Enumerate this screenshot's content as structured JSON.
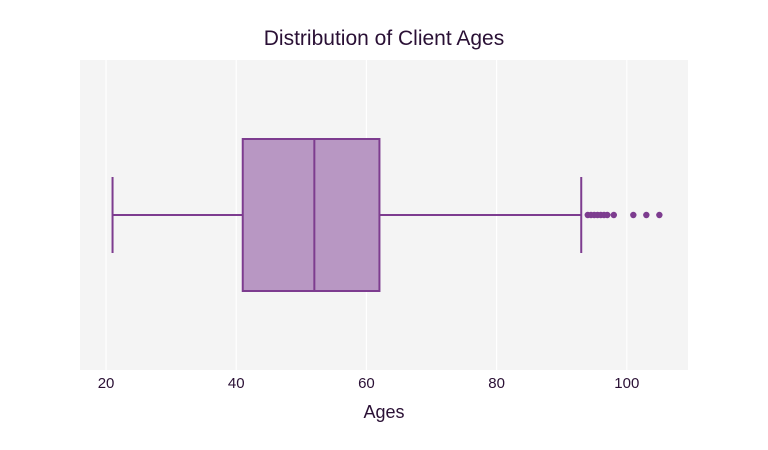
{
  "chart_data": {
    "type": "box",
    "title": "Distribution of Client Ages",
    "xlabel": "Ages",
    "ylabel": "",
    "xlim": [
      16,
      109.4
    ],
    "xticks": [
      20,
      40,
      60,
      80,
      100
    ],
    "grid": true,
    "legend": "none",
    "orientation": "horizontal",
    "series": [
      {
        "stats": {
          "min": 21,
          "q1": 41,
          "median": 52,
          "q3": 62,
          "max": 93
        },
        "outliers": [
          94,
          94.5,
          95,
          95.5,
          96,
          96.5,
          97,
          98,
          101,
          103,
          105
        ]
      }
    ],
    "colors": {
      "box_fill": "#b897c3",
      "box_line": "#7d3c8f",
      "outlier": "#7d3c8f",
      "plot_bg": "#f4f4f4",
      "grid": "#ffffff",
      "text": "#2a1035"
    }
  }
}
